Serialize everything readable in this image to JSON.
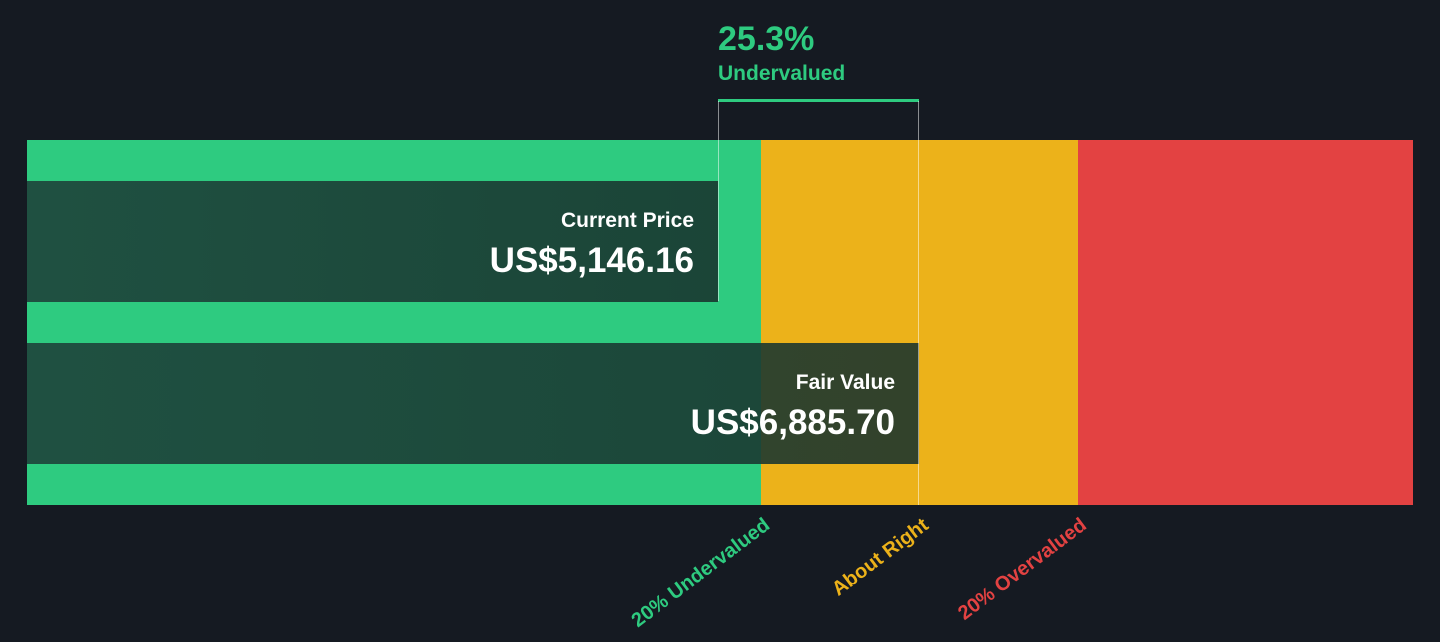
{
  "header": {
    "percent": "25.3%",
    "status": "Undervalued"
  },
  "colors": {
    "undervalued": "#2ecb80",
    "about_right": "#ecb21a",
    "overvalued": "#e34242",
    "background": "#151a22"
  },
  "bars": {
    "current_price": {
      "label": "Current Price",
      "value": "US$5,146.16"
    },
    "fair_value": {
      "label": "Fair Value",
      "value": "US$6,885.70"
    }
  },
  "zones": [
    {
      "label": "20% Undervalued"
    },
    {
      "label": "About Right"
    },
    {
      "label": "20% Overvalued"
    }
  ],
  "chart_data": {
    "type": "bar",
    "categories": [
      "Current Price",
      "Fair Value"
    ],
    "values": [
      5146.16,
      6885.7
    ],
    "unit": "US$",
    "discount_percent": 25.3,
    "zones": [
      "20% Undervalued",
      "About Right",
      "20% Overvalued"
    ]
  }
}
